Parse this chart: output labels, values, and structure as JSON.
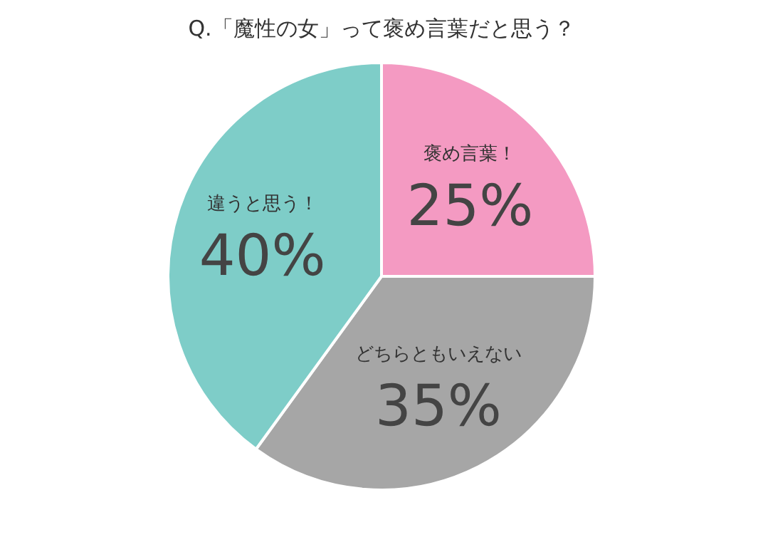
{
  "chart_data": {
    "type": "pie",
    "title": "Q.「魔性の女」って褒め言葉だと思う？",
    "categories": [
      "褒め言葉！",
      "どちらともいえない",
      "違うと思う！"
    ],
    "values": [
      25,
      35,
      40
    ],
    "colors": [
      "#f49ac2",
      "#a6a6a6",
      "#7ecdc8"
    ],
    "value_labels": [
      "25%",
      "35%",
      "40%"
    ]
  }
}
